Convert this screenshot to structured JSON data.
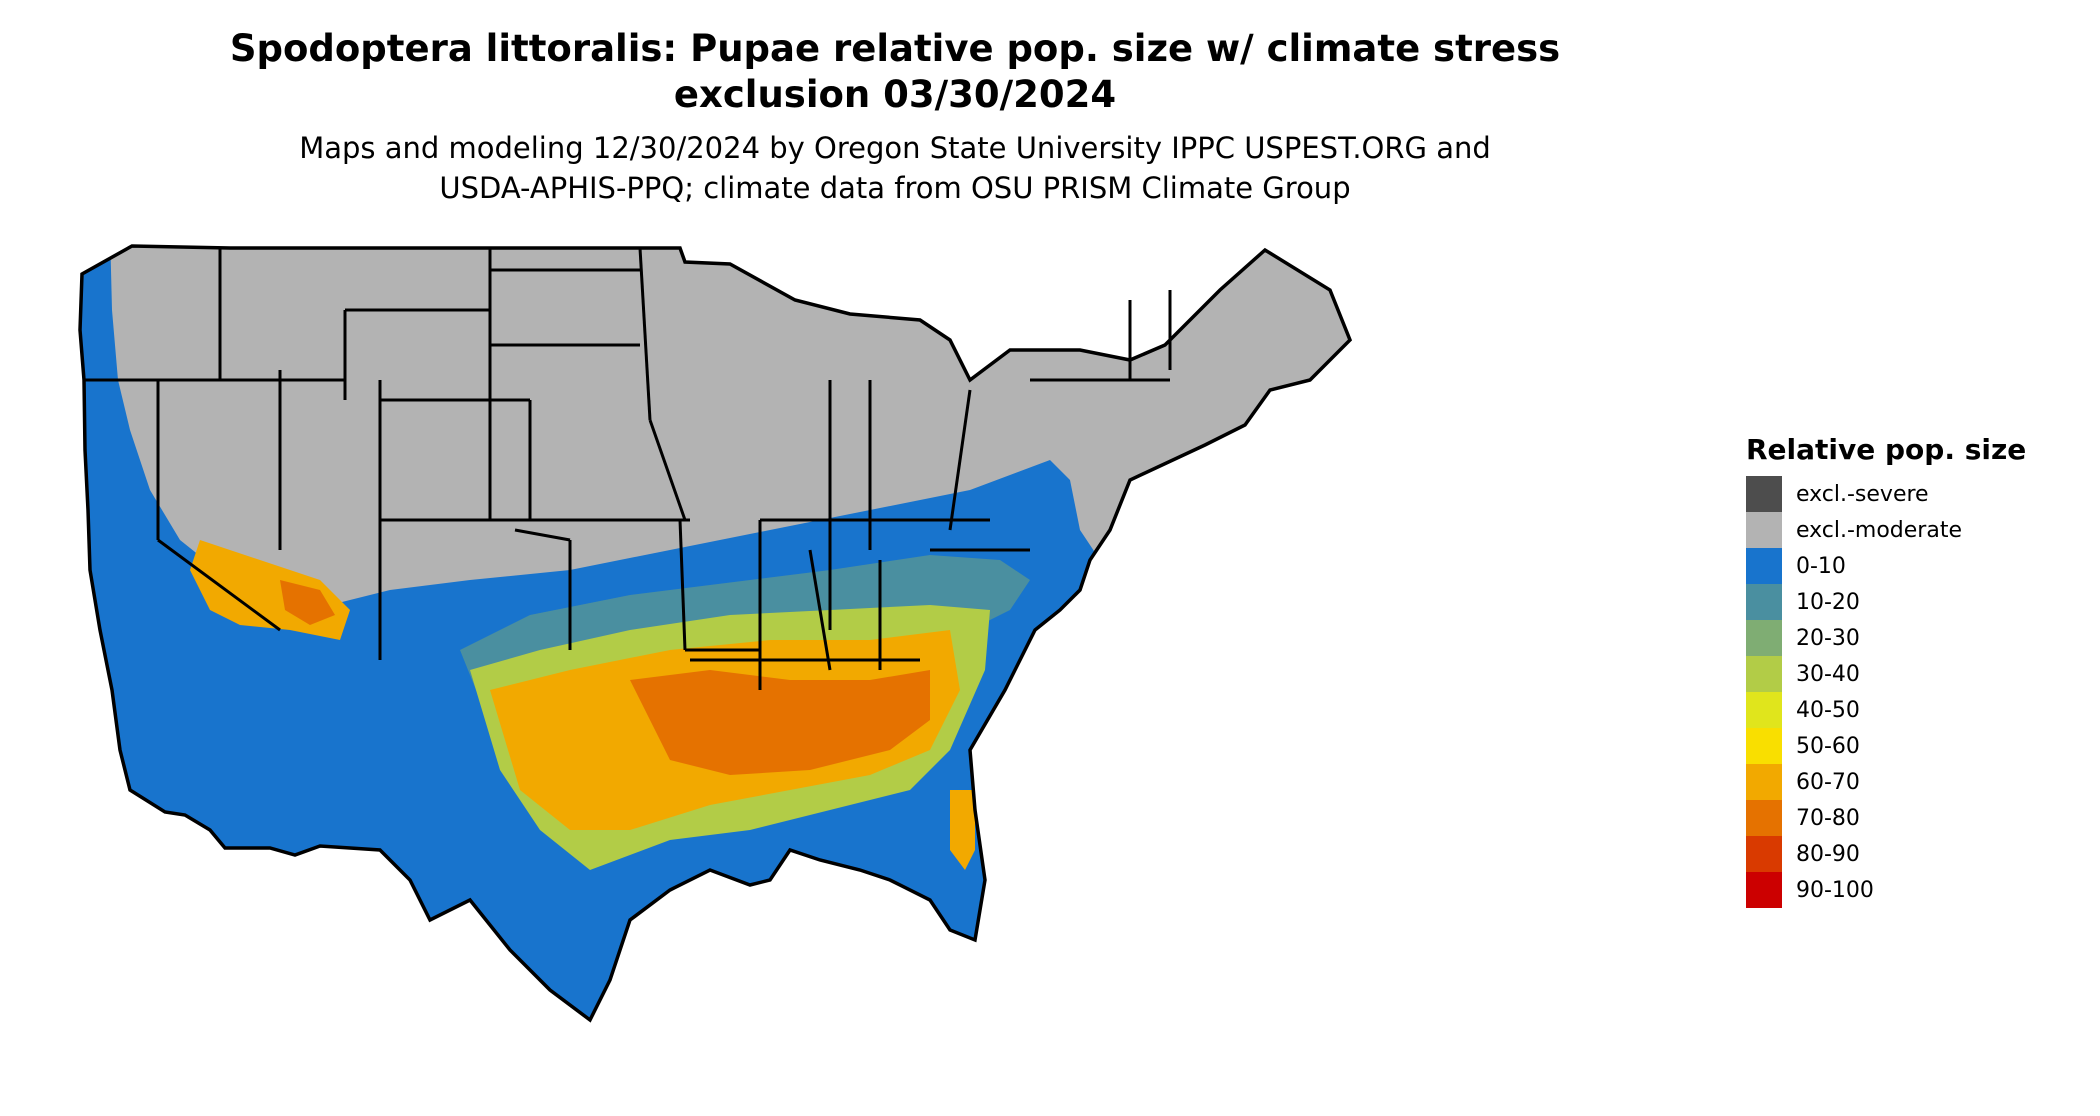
{
  "title_line1": "Spodoptera littoralis: Pupae relative pop. size w/ climate stress",
  "title_line2": "exclusion 03/30/2024",
  "subtitle_line1": "Maps and modeling 12/30/2024 by Oregon State University IPPC USPEST.ORG and",
  "subtitle_line2": "USDA-APHIS-PPQ; climate data from OSU PRISM Climate Group",
  "legend": {
    "title": "Relative pop. size",
    "items": [
      {
        "label": "excl.-severe",
        "color": "#4d4d4d"
      },
      {
        "label": "excl.-moderate",
        "color": "#b3b3b3"
      },
      {
        "label": "0-10",
        "color": "#1874cd"
      },
      {
        "label": "10-20",
        "color": "#4a8fa0"
      },
      {
        "label": "20-30",
        "color": "#7fad73"
      },
      {
        "label": "30-40",
        "color": "#b2cc47"
      },
      {
        "label": "40-50",
        "color": "#e0e51c"
      },
      {
        "label": "50-60",
        "color": "#f9df00"
      },
      {
        "label": "60-70",
        "color": "#f2a900"
      },
      {
        "label": "70-80",
        "color": "#e57200"
      },
      {
        "label": "80-90",
        "color": "#d93a00"
      },
      {
        "label": "90-100",
        "color": "#cc0000"
      }
    ]
  }
}
